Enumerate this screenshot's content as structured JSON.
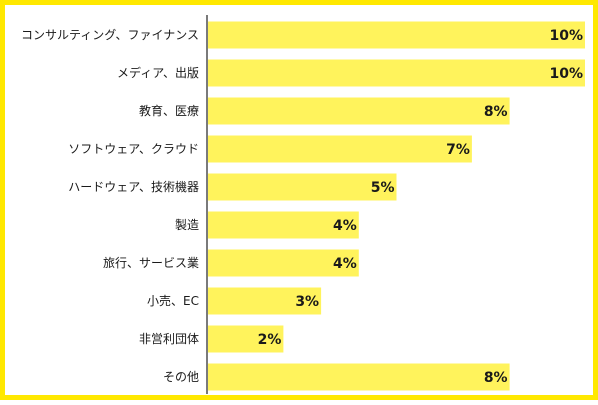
{
  "chart_data": {
    "type": "bar",
    "orientation": "horizontal",
    "title": "",
    "xlabel": "",
    "ylabel": "",
    "xlim": [
      0,
      10
    ],
    "grid": false,
    "categories": [
      "コンサルティング、ファイナンス",
      "メディア、出版",
      "教育、医療",
      "ソフトウェア、クラウド",
      "ハードウェア、技術機器",
      "製造",
      "旅行、サービス業",
      "小売、EC",
      "非営利団体",
      "その他"
    ],
    "values": [
      10,
      10,
      8,
      7,
      5,
      4,
      4,
      3,
      2,
      8
    ],
    "value_labels": [
      "10%",
      "10%",
      "8%",
      "7%",
      "5%",
      "4%",
      "4%",
      "3%",
      "2%",
      "8%"
    ],
    "colors": {
      "bar": "#fff35c",
      "frame": "#ffe800",
      "axis": "#222222",
      "text": "#1a1a1a"
    }
  }
}
